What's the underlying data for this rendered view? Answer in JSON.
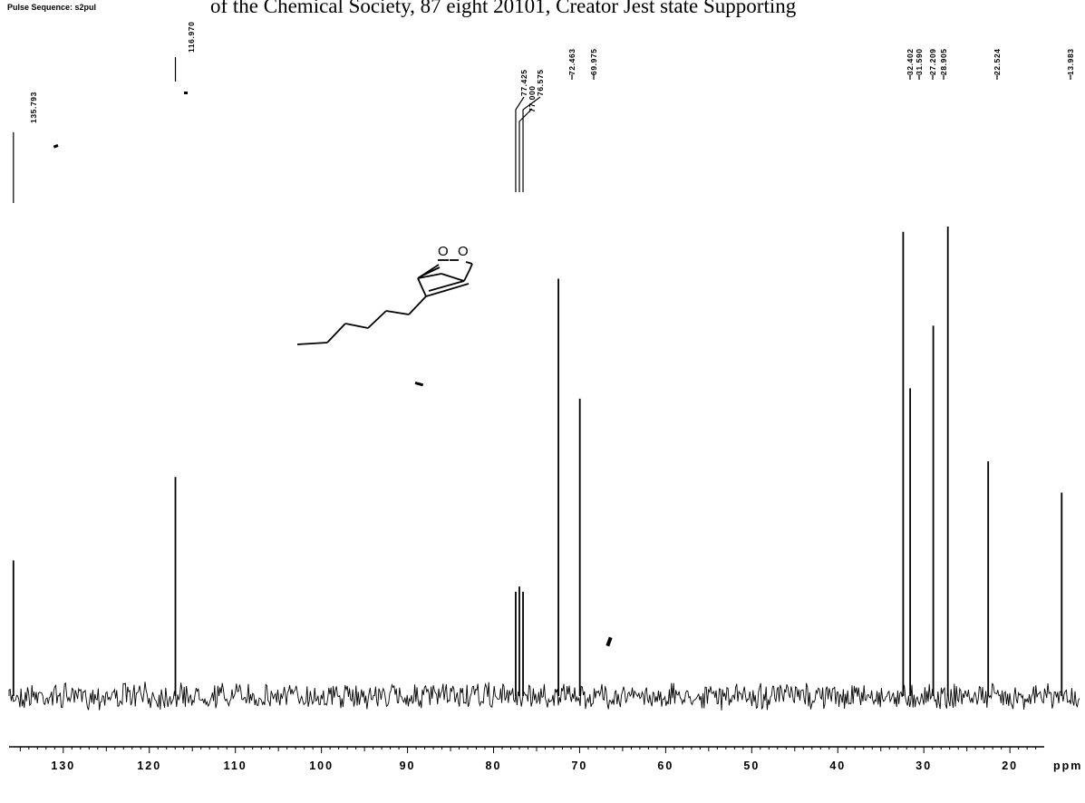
{
  "caption": "of the Chemical Society, 87 eight 20101, Creator Jest state Supporting",
  "header": "Pulse Sequence: s2pul",
  "molecule": {
    "atom_o1": "O",
    "atom_o2": "O"
  },
  "chart_data": {
    "type": "line",
    "title": "",
    "xlabel": "ppm",
    "ylabel": "",
    "xlim": [
      136.3,
      11.8
    ],
    "x_reversed": true,
    "grid": false,
    "legend": "none",
    "color": "#000000",
    "peaks": [
      {
        "label": "135.793",
        "ppm": 135.793,
        "height": 0.26
      },
      {
        "label": "116.970",
        "ppm": 116.97,
        "height": 0.42
      },
      {
        "label": "77.425",
        "ppm": 77.425,
        "height": 0.2
      },
      {
        "label": "77.000",
        "ppm": 77.0,
        "height": 0.21
      },
      {
        "label": "76.575",
        "ppm": 76.575,
        "height": 0.2
      },
      {
        "label": "72.463",
        "ppm": 72.463,
        "height": 0.8
      },
      {
        "label": "69.975",
        "ppm": 69.975,
        "height": 0.57
      },
      {
        "label": "32.402",
        "ppm": 32.402,
        "height": 0.89
      },
      {
        "label": "31.590",
        "ppm": 31.59,
        "height": 0.59
      },
      {
        "label": "28.905",
        "ppm": 28.905,
        "height": 0.71
      },
      {
        "label": "27.209",
        "ppm": 27.209,
        "height": 0.9
      },
      {
        "label": "22.524",
        "ppm": 22.524,
        "height": 0.45
      },
      {
        "label": "13.983",
        "ppm": 13.983,
        "height": 0.39
      }
    ],
    "x_ticks": [
      {
        "value": 130,
        "label": "130"
      },
      {
        "value": 120,
        "label": "120"
      },
      {
        "value": 110,
        "label": "110"
      },
      {
        "value": 100,
        "label": "100"
      },
      {
        "value": 90,
        "label": "90"
      },
      {
        "value": 80,
        "label": "80"
      },
      {
        "value": 70,
        "label": "70"
      },
      {
        "value": 60,
        "label": "60"
      },
      {
        "value": 50,
        "label": "50"
      },
      {
        "value": 40,
        "label": "40"
      },
      {
        "value": 30,
        "label": "30"
      },
      {
        "value": 20,
        "label": "20"
      }
    ]
  }
}
